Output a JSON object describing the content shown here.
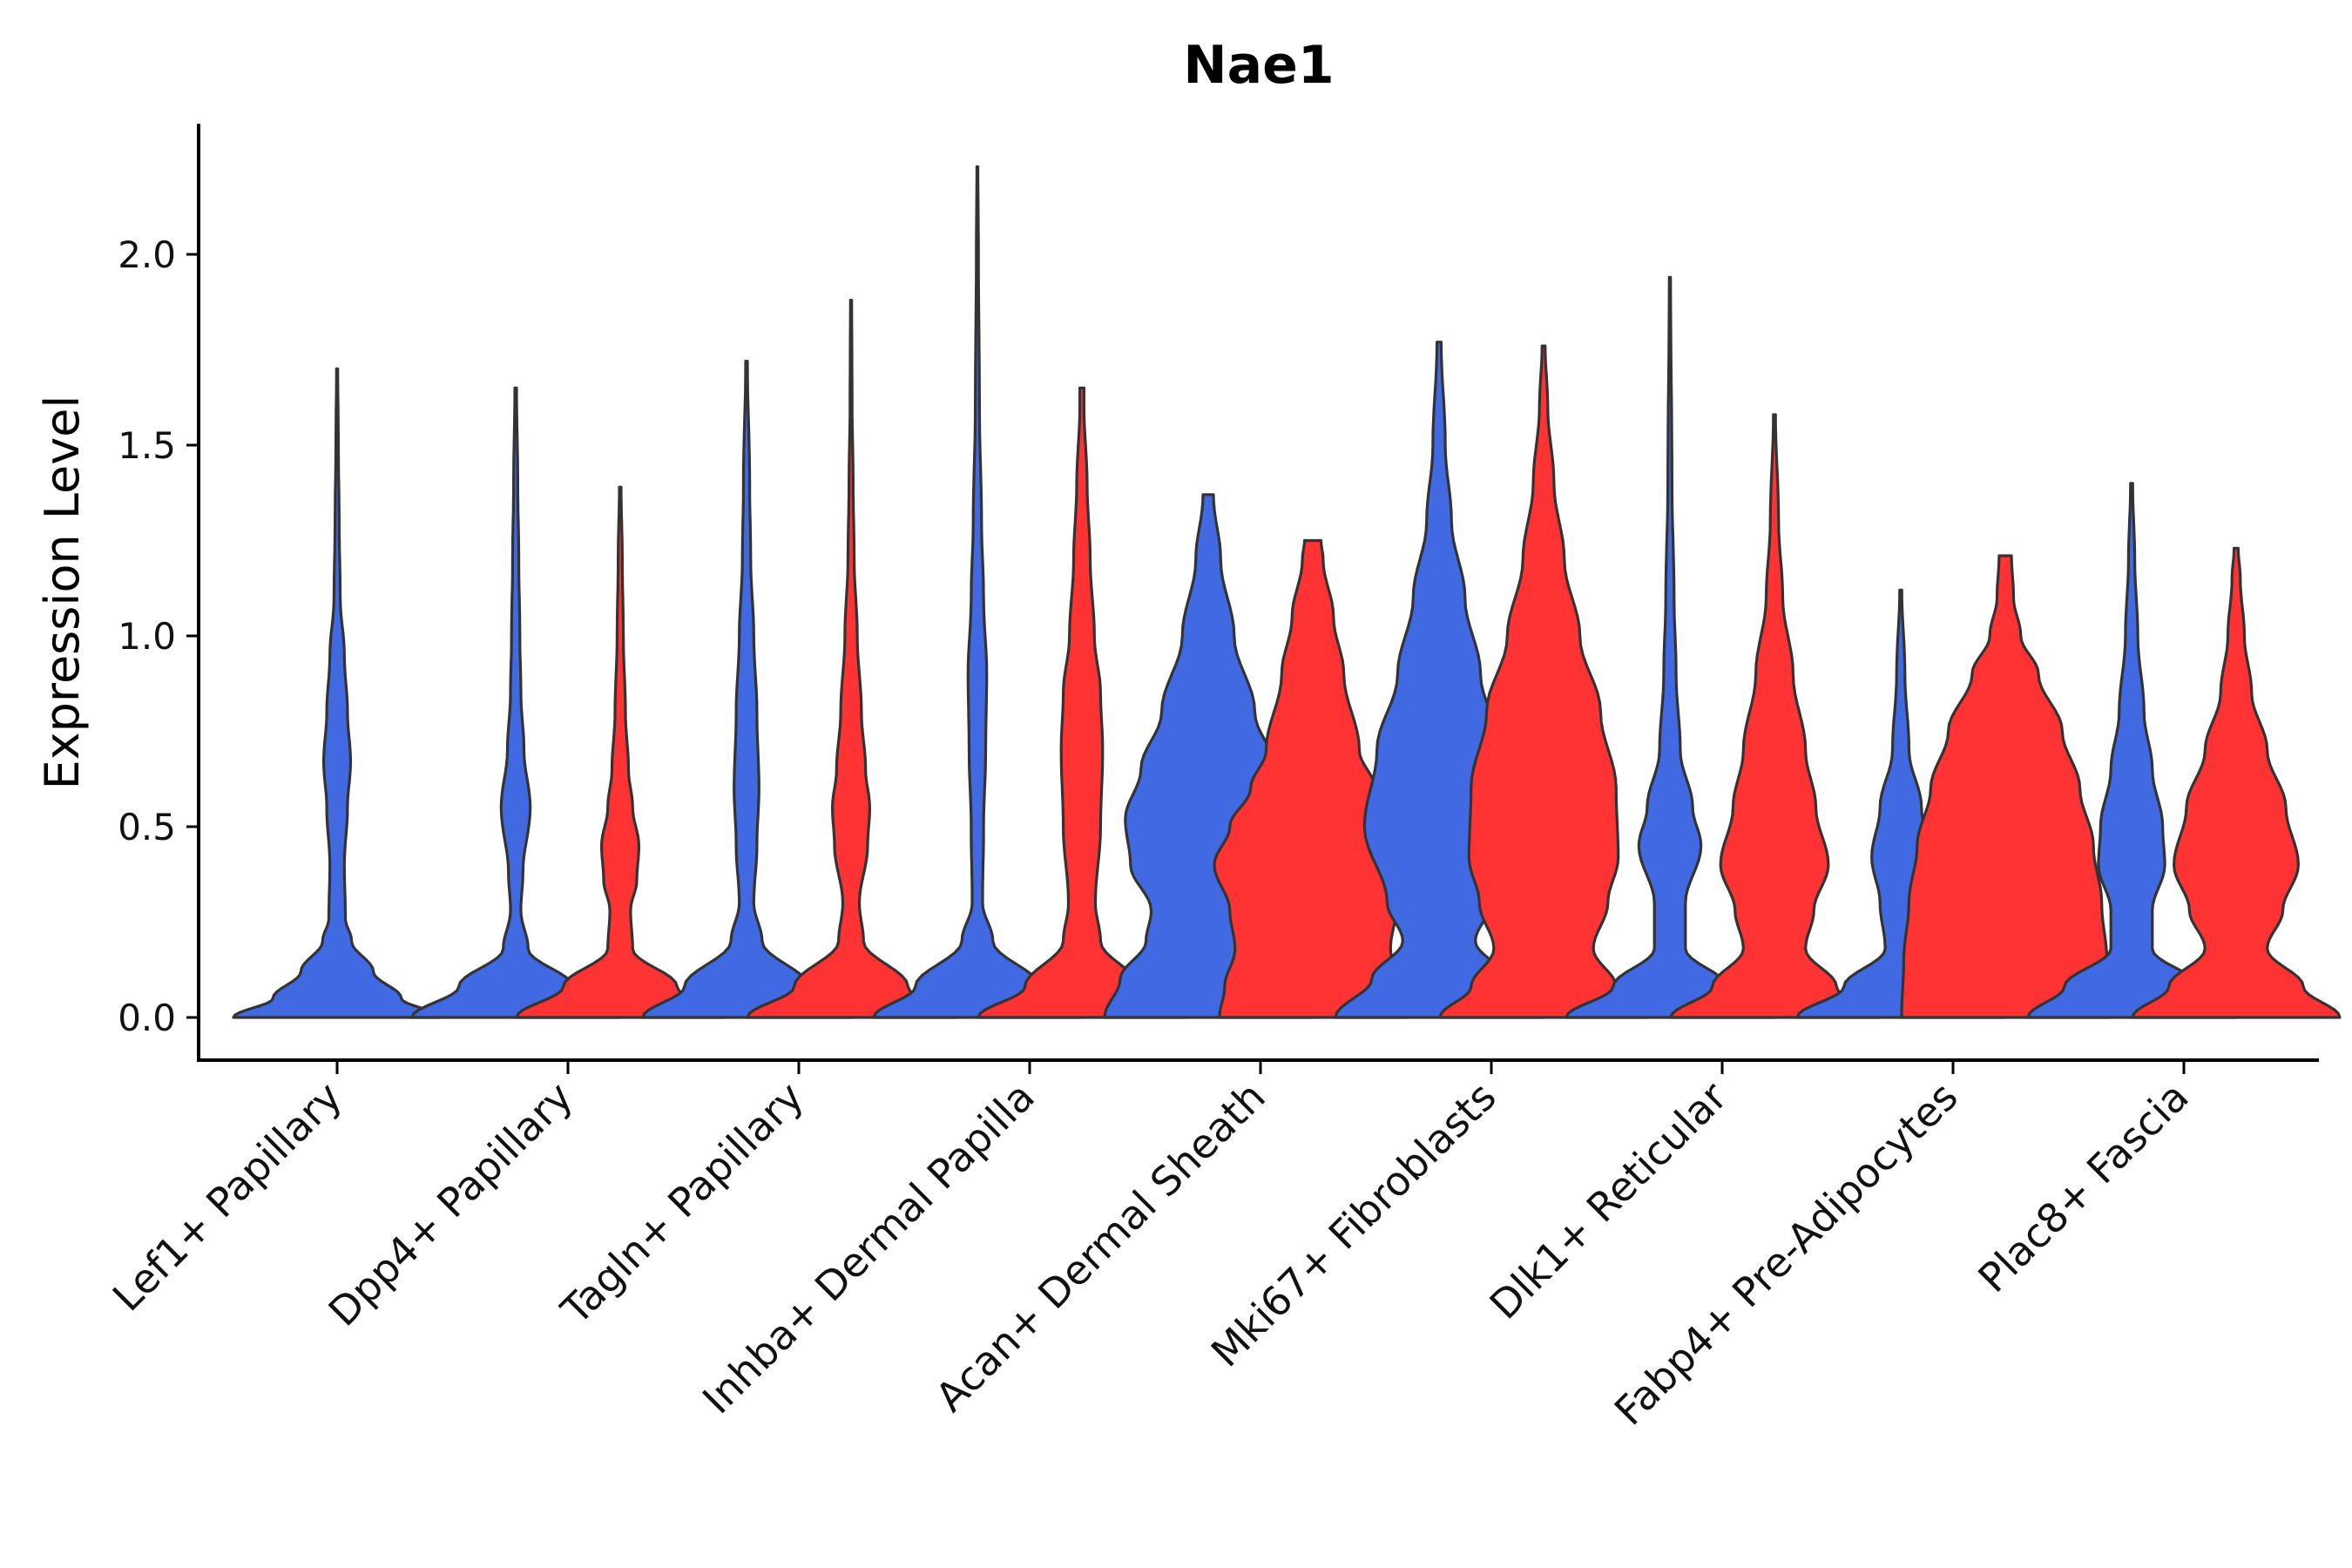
{
  "chart_data": {
    "type": "violin",
    "title": "Nae1",
    "xlabel": "",
    "ylabel": "Expression Level",
    "ylim": [
      -0.11,
      2.35
    ],
    "yticks": [
      0.0,
      0.5,
      1.0,
      1.5,
      2.0
    ],
    "ytick_labels": [
      "0.0",
      "0.5",
      "1.0",
      "1.5",
      "2.0"
    ],
    "grid": false,
    "legend": "none",
    "series_colors": [
      "#4169E1",
      "#FF3333"
    ],
    "categories": [
      "Lef1+ Papillary",
      "Dpp4+ Papillary",
      "Tagln+ Papillary",
      "Inhba+ Dermal Papilla",
      "Acan+ Dermal Sheath",
      "Mki67+ Fibroblasts",
      "Dlk1+ Reticular",
      "Fabp4+ Pre-Adipocytes",
      "Plac8+ Fascia"
    ],
    "violins": [
      {
        "category": "Lef1+ Papillary",
        "group": 0,
        "slot": "center",
        "max": 1.7,
        "profile": [
          [
            0,
            1.0
          ],
          [
            0.05,
            0.62
          ],
          [
            0.12,
            0.35
          ],
          [
            0.2,
            0.14
          ],
          [
            0.26,
            0.08
          ],
          [
            0.4,
            0.07
          ],
          [
            0.55,
            0.1
          ],
          [
            0.67,
            0.13
          ],
          [
            0.8,
            0.1
          ],
          [
            0.95,
            0.07
          ],
          [
            1.1,
            0.03
          ],
          [
            1.3,
            0.02
          ],
          [
            1.5,
            0.012
          ],
          [
            1.7,
            0.006
          ]
        ]
      },
      {
        "category": "Dpp4+ Papillary",
        "group": 0,
        "slot": "left",
        "max": 1.65,
        "profile": [
          [
            0,
            1.0
          ],
          [
            0.08,
            0.55
          ],
          [
            0.18,
            0.12
          ],
          [
            0.28,
            0.05
          ],
          [
            0.38,
            0.07
          ],
          [
            0.55,
            0.14
          ],
          [
            0.7,
            0.08
          ],
          [
            0.85,
            0.05
          ],
          [
            1.0,
            0.04
          ],
          [
            1.2,
            0.03
          ],
          [
            1.4,
            0.02
          ],
          [
            1.65,
            0.008
          ]
        ]
      },
      {
        "category": "Dpp4+ Papillary",
        "group": 1,
        "slot": "right",
        "max": 1.39,
        "profile": [
          [
            0,
            1.0
          ],
          [
            0.08,
            0.55
          ],
          [
            0.18,
            0.12
          ],
          [
            0.28,
            0.1
          ],
          [
            0.36,
            0.16
          ],
          [
            0.45,
            0.18
          ],
          [
            0.55,
            0.12
          ],
          [
            0.65,
            0.08
          ],
          [
            0.8,
            0.05
          ],
          [
            1.0,
            0.03
          ],
          [
            1.2,
            0.02
          ],
          [
            1.39,
            0.008
          ]
        ]
      },
      {
        "category": "Tagln+ Papillary",
        "group": 0,
        "slot": "left",
        "max": 1.72,
        "profile": [
          [
            0,
            1.0
          ],
          [
            0.08,
            0.6
          ],
          [
            0.2,
            0.15
          ],
          [
            0.3,
            0.07
          ],
          [
            0.45,
            0.1
          ],
          [
            0.6,
            0.12
          ],
          [
            0.8,
            0.1
          ],
          [
            1.0,
            0.07
          ],
          [
            1.2,
            0.04
          ],
          [
            1.4,
            0.03
          ],
          [
            1.72,
            0.008
          ]
        ]
      },
      {
        "category": "Tagln+ Papillary",
        "group": 1,
        "slot": "right",
        "max": 1.88,
        "profile": [
          [
            0,
            1.0
          ],
          [
            0.08,
            0.55
          ],
          [
            0.2,
            0.12
          ],
          [
            0.3,
            0.08
          ],
          [
            0.45,
            0.16
          ],
          [
            0.55,
            0.18
          ],
          [
            0.65,
            0.14
          ],
          [
            0.8,
            0.1
          ],
          [
            1.0,
            0.06
          ],
          [
            1.2,
            0.03
          ],
          [
            1.4,
            0.02
          ],
          [
            1.6,
            0.01
          ],
          [
            1.88,
            0.006
          ]
        ]
      },
      {
        "category": "Inhba+ Dermal Papilla",
        "group": 0,
        "slot": "left",
        "max": 2.23,
        "profile": [
          [
            0,
            1.0
          ],
          [
            0.08,
            0.6
          ],
          [
            0.2,
            0.15
          ],
          [
            0.3,
            0.05
          ],
          [
            0.5,
            0.06
          ],
          [
            0.7,
            0.08
          ],
          [
            0.9,
            0.09
          ],
          [
            1.1,
            0.06
          ],
          [
            1.3,
            0.04
          ],
          [
            1.6,
            0.02
          ],
          [
            2.0,
            0.01
          ],
          [
            2.23,
            0.005
          ]
        ]
      },
      {
        "category": "Inhba+ Dermal Papilla",
        "group": 1,
        "slot": "right",
        "max": 1.65,
        "profile": [
          [
            0,
            1.0
          ],
          [
            0.08,
            0.55
          ],
          [
            0.2,
            0.18
          ],
          [
            0.3,
            0.13
          ],
          [
            0.5,
            0.18
          ],
          [
            0.7,
            0.2
          ],
          [
            0.85,
            0.18
          ],
          [
            1.0,
            0.12
          ],
          [
            1.2,
            0.08
          ],
          [
            1.4,
            0.05
          ],
          [
            1.6,
            0.02
          ],
          [
            1.65,
            0.02
          ]
        ]
      },
      {
        "category": "Acan+ Dermal Sheath",
        "group": 0,
        "slot": "left",
        "max": 1.37,
        "profile": [
          [
            0,
            1.0
          ],
          [
            0.1,
            0.85
          ],
          [
            0.2,
            0.6
          ],
          [
            0.28,
            0.55
          ],
          [
            0.4,
            0.75
          ],
          [
            0.52,
            0.8
          ],
          [
            0.65,
            0.65
          ],
          [
            0.8,
            0.45
          ],
          [
            1.0,
            0.25
          ],
          [
            1.2,
            0.12
          ],
          [
            1.37,
            0.05
          ]
        ]
      },
      {
        "category": "Acan+ Dermal Sheath",
        "group": 1,
        "slot": "right",
        "max": 1.25,
        "profile": [
          [
            0,
            0.9
          ],
          [
            0.08,
            0.85
          ],
          [
            0.18,
            0.75
          ],
          [
            0.28,
            0.8
          ],
          [
            0.4,
            0.95
          ],
          [
            0.5,
            0.8
          ],
          [
            0.6,
            0.6
          ],
          [
            0.7,
            0.45
          ],
          [
            0.9,
            0.3
          ],
          [
            1.05,
            0.2
          ],
          [
            1.2,
            0.1
          ],
          [
            1.25,
            0.08
          ]
        ]
      },
      {
        "category": "Mki67+ Fibroblasts",
        "group": 0,
        "slot": "left",
        "max": 1.77,
        "profile": [
          [
            0,
            1.0
          ],
          [
            0.1,
            0.65
          ],
          [
            0.2,
            0.35
          ],
          [
            0.3,
            0.5
          ],
          [
            0.5,
            0.72
          ],
          [
            0.7,
            0.6
          ],
          [
            0.9,
            0.4
          ],
          [
            1.1,
            0.25
          ],
          [
            1.3,
            0.12
          ],
          [
            1.5,
            0.06
          ],
          [
            1.77,
            0.02
          ]
        ]
      },
      {
        "category": "Mki67+ Fibroblasts",
        "group": 1,
        "slot": "right",
        "max": 1.76,
        "profile": [
          [
            0,
            1.0
          ],
          [
            0.08,
            0.7
          ],
          [
            0.18,
            0.48
          ],
          [
            0.3,
            0.62
          ],
          [
            0.42,
            0.72
          ],
          [
            0.6,
            0.7
          ],
          [
            0.8,
            0.55
          ],
          [
            1.0,
            0.35
          ],
          [
            1.2,
            0.2
          ],
          [
            1.4,
            0.1
          ],
          [
            1.6,
            0.04
          ],
          [
            1.76,
            0.015
          ]
        ]
      },
      {
        "category": "Dlk1+ Reticular",
        "group": 0,
        "slot": "left",
        "max": 1.94,
        "profile": [
          [
            0,
            1.0
          ],
          [
            0.08,
            0.55
          ],
          [
            0.18,
            0.15
          ],
          [
            0.3,
            0.15
          ],
          [
            0.45,
            0.3
          ],
          [
            0.55,
            0.22
          ],
          [
            0.7,
            0.1
          ],
          [
            0.9,
            0.06
          ],
          [
            1.1,
            0.04
          ],
          [
            1.4,
            0.02
          ],
          [
            1.94,
            0.006
          ]
        ]
      },
      {
        "category": "Dlk1+ Reticular",
        "group": 1,
        "slot": "right",
        "max": 1.58,
        "profile": [
          [
            0,
            1.0
          ],
          [
            0.08,
            0.6
          ],
          [
            0.18,
            0.3
          ],
          [
            0.28,
            0.38
          ],
          [
            0.4,
            0.52
          ],
          [
            0.55,
            0.4
          ],
          [
            0.7,
            0.3
          ],
          [
            0.9,
            0.18
          ],
          [
            1.1,
            0.08
          ],
          [
            1.3,
            0.04
          ],
          [
            1.58,
            0.01
          ]
        ]
      },
      {
        "category": "Fabp4+ Pre-Adipocytes",
        "group": 0,
        "slot": "left",
        "max": 1.12,
        "profile": [
          [
            0,
            1.0
          ],
          [
            0.08,
            0.55
          ],
          [
            0.18,
            0.15
          ],
          [
            0.3,
            0.2
          ],
          [
            0.42,
            0.28
          ],
          [
            0.55,
            0.2
          ],
          [
            0.7,
            0.08
          ],
          [
            0.9,
            0.04
          ],
          [
            1.12,
            0.01
          ]
        ]
      },
      {
        "category": "Fabp4+ Pre-Adipocytes",
        "group": 1,
        "slot": "right",
        "max": 1.21,
        "profile": [
          [
            0,
            1.0
          ],
          [
            0.15,
            0.98
          ],
          [
            0.3,
            0.93
          ],
          [
            0.45,
            0.85
          ],
          [
            0.6,
            0.72
          ],
          [
            0.75,
            0.55
          ],
          [
            0.9,
            0.32
          ],
          [
            1.0,
            0.15
          ],
          [
            1.1,
            0.08
          ],
          [
            1.21,
            0.06
          ]
        ]
      },
      {
        "category": "Plac8+ Fascia",
        "group": 0,
        "slot": "left",
        "max": 1.4,
        "profile": [
          [
            0,
            1.0
          ],
          [
            0.08,
            0.65
          ],
          [
            0.18,
            0.2
          ],
          [
            0.28,
            0.2
          ],
          [
            0.4,
            0.32
          ],
          [
            0.5,
            0.3
          ],
          [
            0.65,
            0.2
          ],
          [
            0.8,
            0.12
          ],
          [
            1.0,
            0.06
          ],
          [
            1.2,
            0.03
          ],
          [
            1.4,
            0.01
          ]
        ]
      },
      {
        "category": "Plac8+ Fascia",
        "group": 1,
        "slot": "right",
        "max": 1.23,
        "profile": [
          [
            0,
            1.0
          ],
          [
            0.08,
            0.65
          ],
          [
            0.18,
            0.3
          ],
          [
            0.28,
            0.45
          ],
          [
            0.4,
            0.6
          ],
          [
            0.55,
            0.48
          ],
          [
            0.7,
            0.3
          ],
          [
            0.85,
            0.15
          ],
          [
            1.0,
            0.08
          ],
          [
            1.15,
            0.04
          ],
          [
            1.23,
            0.02
          ]
        ]
      }
    ]
  }
}
